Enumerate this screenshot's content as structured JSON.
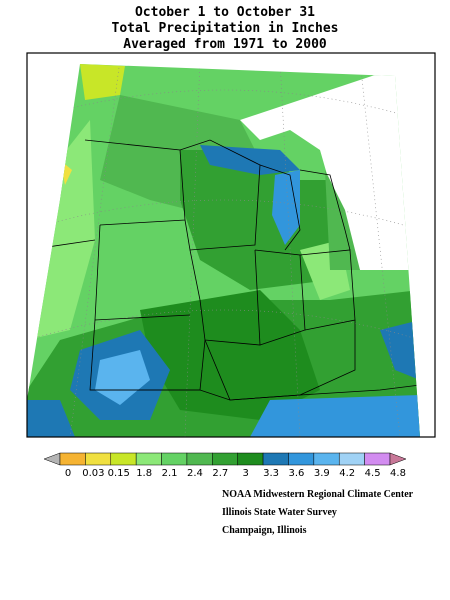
{
  "title": [
    "October 1 to October 31",
    "Total Precipitation in Inches",
    "Averaged from 1971 to 2000"
  ],
  "legend": {
    "labels": [
      "0",
      "0.03",
      "0.15",
      "1.8",
      "2.1",
      "2.4",
      "2.7",
      "3",
      "3.3",
      "3.6",
      "3.9",
      "4.2",
      "4.5",
      "4.8"
    ],
    "colors": [
      "#b4b4b4",
      "#f5b332",
      "#f0e040",
      "#c8e628",
      "#8ce878",
      "#64d264",
      "#50b850",
      "#32a032",
      "#1e8c1e",
      "#1e78b4",
      "#3296dc",
      "#5ab4ee",
      "#a0d2f5",
      "#d28cf0",
      "#c87898"
    ]
  },
  "credits": [
    "NOAA Midwestern Regional Climate Center",
    "Illinois State Water Survey",
    "Champaign, Illinois"
  ]
}
